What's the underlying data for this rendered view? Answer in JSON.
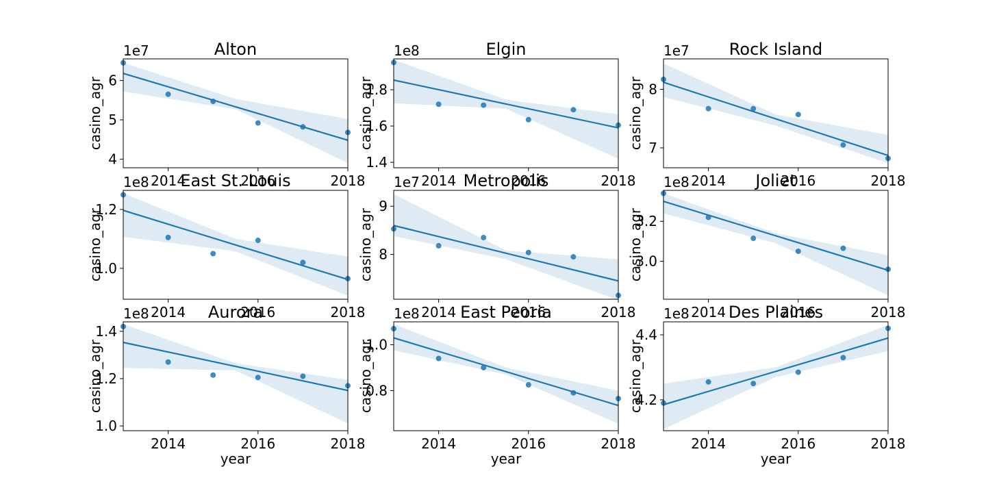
{
  "figure": {
    "background": "#ffffff",
    "colors": {
      "series": "#1f77b4",
      "ci_band": "#1f77b4"
    }
  },
  "chart_data": [
    {
      "type": "scatter",
      "title": "Alton",
      "xlabel": "",
      "ylabel": "casino_agr",
      "offset_text": "1e7",
      "x": [
        2013,
        2014,
        2015,
        2016,
        2017,
        2018
      ],
      "y": [
        6.45,
        5.65,
        5.47,
        4.92,
        4.82,
        4.68
      ],
      "fit": [
        [
          2013,
          6.18
        ],
        [
          2018,
          4.48
        ]
      ],
      "ci_upper": [
        [
          2013,
          6.45
        ],
        [
          2015.5,
          5.53
        ],
        [
          2018,
          5.02
        ]
      ],
      "ci_lower": [
        [
          2013,
          5.72
        ],
        [
          2015.5,
          5.27
        ],
        [
          2018,
          3.9
        ]
      ],
      "xlim": [
        2013,
        2018
      ],
      "ylim": [
        3.78,
        6.55
      ],
      "xticks": [
        2014,
        2016,
        2018
      ],
      "yticks": [
        4,
        5,
        6
      ],
      "yticklabels": [
        "4",
        "5",
        "6"
      ],
      "grid": false
    },
    {
      "type": "scatter",
      "title": "Elgin",
      "xlabel": "",
      "ylabel": "casino_agr",
      "offset_text": "1e8",
      "x": [
        2013,
        2014,
        2015,
        2016,
        2017,
        2018
      ],
      "y": [
        1.95,
        1.72,
        1.715,
        1.635,
        1.69,
        1.605
      ],
      "fit": [
        [
          2013,
          1.853
        ],
        [
          2018,
          1.59
        ]
      ],
      "ci_upper": [
        [
          2013,
          1.965
        ],
        [
          2015.5,
          1.745
        ],
        [
          2018,
          1.665
        ]
      ],
      "ci_lower": [
        [
          2013,
          1.725
        ],
        [
          2015.5,
          1.695
        ],
        [
          2018,
          1.42
        ]
      ],
      "xlim": [
        2013,
        2018
      ],
      "ylim": [
        1.37,
        1.97
      ],
      "xticks": [
        2014,
        2016,
        2018
      ],
      "yticks": [
        1.4,
        1.6,
        1.8
      ],
      "yticklabels": [
        "1.4",
        "1.6",
        "1.8"
      ],
      "grid": false
    },
    {
      "type": "scatter",
      "title": "Rock Island",
      "xlabel": "",
      "ylabel": "casino_agr",
      "offset_text": "1e7",
      "x": [
        2013,
        2014,
        2015,
        2016,
        2017,
        2018
      ],
      "y": [
        8.17,
        7.67,
        7.67,
        7.57,
        7.05,
        6.82
      ],
      "fit": [
        [
          2013,
          8.12
        ],
        [
          2018,
          6.87
        ]
      ],
      "ci_upper": [
        [
          2013,
          8.44
        ],
        [
          2015.5,
          7.57
        ],
        [
          2018,
          7.22
        ]
      ],
      "ci_lower": [
        [
          2013,
          7.87
        ],
        [
          2015.5,
          7.38
        ],
        [
          2018,
          6.74
        ]
      ],
      "xlim": [
        2013,
        2018
      ],
      "ylim": [
        6.66,
        8.52
      ],
      "xticks": [
        2014,
        2016,
        2018
      ],
      "yticks": [
        7,
        8
      ],
      "yticklabels": [
        "7",
        "8"
      ],
      "grid": false
    },
    {
      "type": "scatter",
      "title": "East St. Louis",
      "xlabel": "",
      "ylabel": "casino_agr",
      "offset_text": "1e8",
      "x": [
        2013,
        2014,
        2015,
        2016,
        2017,
        2018
      ],
      "y": [
        1.25,
        1.105,
        1.05,
        1.095,
        1.02,
        0.965
      ],
      "fit": [
        [
          2013,
          1.197
        ],
        [
          2018,
          0.962
        ]
      ],
      "ci_upper": [
        [
          2013,
          1.255
        ],
        [
          2015.5,
          1.1
        ],
        [
          2018,
          1.04
        ]
      ],
      "ci_lower": [
        [
          2013,
          1.107
        ],
        [
          2015.5,
          1.058
        ],
        [
          2018,
          0.907
        ]
      ],
      "xlim": [
        2013,
        2018
      ],
      "ylim": [
        0.895,
        1.265
      ],
      "xticks": [
        2014,
        2016,
        2018
      ],
      "yticks": [
        1.0,
        1.2
      ],
      "yticklabels": [
        "1.0",
        "1.2"
      ],
      "grid": false
    },
    {
      "type": "scatter",
      "title": "Metropolis",
      "xlabel": "",
      "ylabel": "casino_agr",
      "offset_text": "1e7",
      "x": [
        2013,
        2014,
        2015,
        2016,
        2017,
        2018
      ],
      "y": [
        8.53,
        8.18,
        8.35,
        8.04,
        7.95,
        7.15
      ],
      "fit": [
        [
          2013,
          8.6
        ],
        [
          2018,
          7.45
        ]
      ],
      "ci_upper": [
        [
          2013,
          9.25
        ],
        [
          2015.5,
          8.08
        ],
        [
          2018,
          7.9
        ]
      ],
      "ci_lower": [
        [
          2013,
          8.38
        ],
        [
          2015.5,
          7.9
        ],
        [
          2018,
          7.05
        ]
      ],
      "xlim": [
        2013,
        2018
      ],
      "ylim": [
        7.07,
        9.33
      ],
      "xticks": [
        2014,
        2016,
        2018
      ],
      "yticks": [
        8,
        9
      ],
      "yticklabels": [
        "8",
        "9"
      ],
      "grid": false
    },
    {
      "type": "scatter",
      "title": "Joliet",
      "xlabel": "",
      "ylabel": "casino_agr",
      "offset_text": "1e8",
      "x": [
        2013,
        2014,
        2015,
        2016,
        2017,
        2018
      ],
      "y": [
        3.34,
        3.22,
        3.115,
        3.05,
        3.065,
        2.96
      ],
      "fit": [
        [
          2013,
          3.3
        ],
        [
          2018,
          2.955
        ]
      ],
      "ci_upper": [
        [
          2013,
          3.34
        ],
        [
          2015.5,
          3.14
        ],
        [
          2018,
          3.03
        ]
      ],
      "ci_lower": [
        [
          2013,
          3.24
        ],
        [
          2015.5,
          3.09
        ],
        [
          2018,
          2.83
        ]
      ],
      "xlim": [
        2013,
        2018
      ],
      "ylim": [
        2.81,
        3.355
      ],
      "xticks": [
        2014,
        2016,
        2018
      ],
      "yticks": [
        3.0,
        3.2
      ],
      "yticklabels": [
        "3.0",
        "3.2"
      ],
      "grid": false
    },
    {
      "type": "scatter",
      "title": "Aurora",
      "xlabel": "year",
      "ylabel": "casino_agr",
      "offset_text": "1e8",
      "x": [
        2013,
        2014,
        2015,
        2016,
        2017,
        2018
      ],
      "y": [
        1.42,
        1.27,
        1.215,
        1.205,
        1.21,
        1.17
      ],
      "fit": [
        [
          2013,
          1.353
        ],
        [
          2018,
          1.15
        ]
      ],
      "ci_upper": [
        [
          2013,
          1.43
        ],
        [
          2015.5,
          1.265
        ],
        [
          2018,
          1.195
        ]
      ],
      "ci_lower": [
        [
          2013,
          1.245
        ],
        [
          2015.5,
          1.235
        ],
        [
          2018,
          1.01
        ]
      ],
      "xlim": [
        2013,
        2018
      ],
      "ylim": [
        0.98,
        1.44
      ],
      "xticks": [
        2014,
        2016,
        2018
      ],
      "yticks": [
        1.0,
        1.2,
        1.4
      ],
      "yticklabels": [
        "1.0",
        "1.2",
        "1.4"
      ],
      "grid": false
    },
    {
      "type": "scatter",
      "title": "East Peoria",
      "xlabel": "year",
      "ylabel": "casino_agr",
      "offset_text": "1e8",
      "x": [
        2013,
        2014,
        2015,
        2016,
        2017,
        2018
      ],
      "y": [
        1.07,
        0.94,
        0.9,
        0.825,
        0.79,
        0.765
      ],
      "fit": [
        [
          2013,
          1.03
        ],
        [
          2018,
          0.735
        ]
      ],
      "ci_upper": [
        [
          2013,
          1.09
        ],
        [
          2015.5,
          0.9
        ],
        [
          2018,
          0.8
        ]
      ],
      "ci_lower": [
        [
          2013,
          0.975
        ],
        [
          2015.5,
          0.87
        ],
        [
          2018,
          0.655
        ]
      ],
      "xlim": [
        2013,
        2018
      ],
      "ylim": [
        0.625,
        1.1
      ],
      "xticks": [
        2014,
        2016,
        2018
      ],
      "yticks": [
        0.8,
        1.0
      ],
      "yticklabels": [
        "0.8",
        "1.0"
      ],
      "grid": false
    },
    {
      "type": "scatter",
      "title": "Des Plaines",
      "xlabel": "year",
      "ylabel": "casino_agr",
      "offset_text": "1e8",
      "x": [
        2013,
        2014,
        2015,
        2016,
        2017,
        2018
      ],
      "y": [
        4.19,
        4.255,
        4.25,
        4.285,
        4.33,
        4.42
      ],
      "fit": [
        [
          2013,
          4.185
        ],
        [
          2018,
          4.39
        ]
      ],
      "ci_upper": [
        [
          2013,
          4.25
        ],
        [
          2015.5,
          4.3
        ],
        [
          2018,
          4.43
        ]
      ],
      "ci_lower": [
        [
          2013,
          4.11
        ],
        [
          2015.5,
          4.27
        ],
        [
          2018,
          4.35
        ]
      ],
      "xlim": [
        2013,
        2018
      ],
      "ylim": [
        4.105,
        4.44
      ],
      "xticks": [
        2014,
        2016,
        2018
      ],
      "yticks": [
        4.2,
        4.4
      ],
      "yticklabels": [
        "4.2",
        "4.4"
      ],
      "grid": false
    }
  ]
}
